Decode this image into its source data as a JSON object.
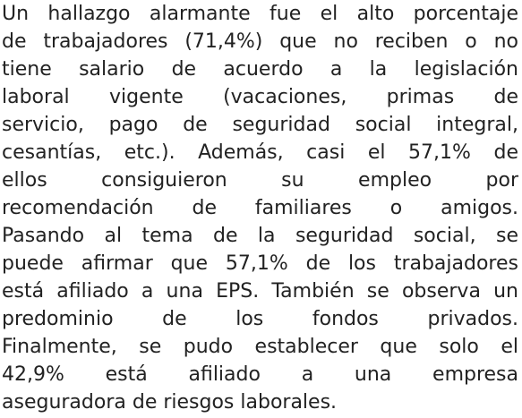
{
  "paragraph": {
    "lines": [
      "Un hallazgo alarmante fue el alto porcentaje",
      "de trabajadores (71,4%) que no reciben o no",
      "tiene salario de acuerdo a la legislación",
      "laboral vigente (vacaciones, primas de",
      "servicio, pago de seguridad social integral,",
      "cesantías, etc.). Además, casi el 57,1% de",
      "ellos consiguieron su empleo por",
      "recomendación de familiares o amigos.",
      "Pasando al tema de la seguridad social, se",
      "puede afirmar que 57,1% de los trabajadores",
      "está afiliado a una EPS. También se observa un",
      "predominio de los fondos privados.",
      "Finalmente, se pudo establecer que solo el",
      "42,9% está afiliado a una empresa",
      "aseguradora de riesgos laborales."
    ]
  }
}
